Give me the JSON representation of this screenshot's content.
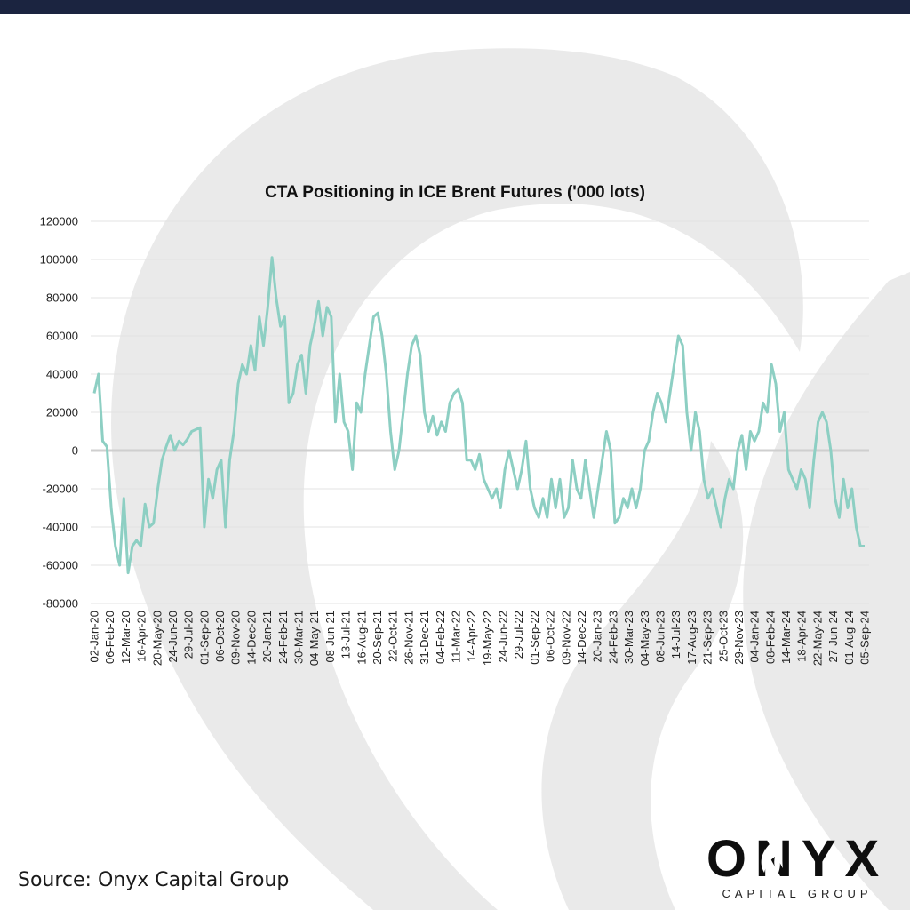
{
  "source": "Source: Onyx Capital Group",
  "brand": {
    "name": "ONYX",
    "sub": "CAPITAL GROUP"
  },
  "colors": {
    "series": "#8dcfc3",
    "zero_line": "#cfcfcf",
    "grid": "#e3e3e3",
    "top_bar": "#1b2440",
    "watermark": "#e2e2e2"
  },
  "chart_data": {
    "type": "line",
    "title": "CTA Positioning in ICE Brent Futures ('000 lots)",
    "xlabel": "",
    "ylabel": "",
    "ylim": [
      -80000,
      120000
    ],
    "yticks": [
      120000,
      100000,
      80000,
      60000,
      40000,
      20000,
      0,
      -20000,
      -40000,
      -60000,
      -80000
    ],
    "ytick_labels": [
      "120000",
      "100000",
      "80000",
      "60000",
      "40000",
      "20000",
      "0",
      "-20000",
      "-40000",
      "-60000",
      "-80000"
    ],
    "x_tick_labels": [
      "02-Jan-20",
      "06-Feb-20",
      "12-Mar-20",
      "16-Apr-20",
      "20-May-20",
      "24-Jun-20",
      "29-Jul-20",
      "01-Sep-20",
      "06-Oct-20",
      "09-Nov-20",
      "14-Dec-20",
      "20-Jan-21",
      "24-Feb-21",
      "30-Mar-21",
      "04-May-21",
      "08-Jun-21",
      "13-Jul-21",
      "16-Aug-21",
      "20-Sep-21",
      "22-Oct-21",
      "26-Nov-21",
      "31-Dec-21",
      "04-Feb-22",
      "11-Mar-22",
      "14-Apr-22",
      "19-May-22",
      "24-Jun-22",
      "29-Jul-22",
      "01-Sep-22",
      "06-Oct-22",
      "09-Nov-22",
      "14-Dec-22",
      "20-Jan-23",
      "24-Feb-23",
      "30-Mar-23",
      "04-May-23",
      "08-Jun-23",
      "14-Jul-23",
      "17-Aug-23",
      "21-Sep-23",
      "25-Oct-23",
      "29-Nov-23",
      "04-Jan-24",
      "08-Feb-24",
      "14-Mar-24",
      "18-Apr-24",
      "22-May-24",
      "27-Jun-24",
      "01-Aug-24",
      "05-Sep-24"
    ],
    "grid": true,
    "legend": "none",
    "series": [
      {
        "values": [
          30000,
          40000,
          5000,
          2000,
          -30000,
          -50000,
          -60000,
          -25000,
          -64000,
          -50000,
          -47000,
          -50000,
          -28000,
          -40000,
          -38000,
          -20000,
          -5000,
          2000,
          8000,
          0,
          5000,
          3000,
          6000,
          10000,
          11000,
          12000,
          -40000,
          -15000,
          -25000,
          -10000,
          -5000,
          -40000,
          -5000,
          10000,
          35000,
          45000,
          40000,
          55000,
          42000,
          70000,
          55000,
          75000,
          101000,
          80000,
          65000,
          70000,
          25000,
          30000,
          45000,
          50000,
          30000,
          55000,
          65000,
          78000,
          60000,
          75000,
          70000,
          15000,
          40000,
          15000,
          10000,
          -10000,
          25000,
          20000,
          40000,
          55000,
          70000,
          72000,
          60000,
          40000,
          10000,
          -10000,
          0,
          20000,
          40000,
          55000,
          60000,
          50000,
          20000,
          10000,
          18000,
          8000,
          15000,
          10000,
          25000,
          30000,
          32000,
          25000,
          -5000,
          -5000,
          -10000,
          -2000,
          -15000,
          -20000,
          -25000,
          -20000,
          -30000,
          -10000,
          0,
          -10000,
          -20000,
          -10000,
          5000,
          -20000,
          -30000,
          -35000,
          -25000,
          -35000,
          -15000,
          -30000,
          -15000,
          -35000,
          -30000,
          -5000,
          -20000,
          -25000,
          -5000,
          -20000,
          -35000,
          -20000,
          -5000,
          10000,
          0,
          -38000,
          -35000,
          -25000,
          -30000,
          -20000,
          -30000,
          -20000,
          0,
          5000,
          20000,
          30000,
          25000,
          15000,
          30000,
          45000,
          60000,
          55000,
          20000,
          0,
          20000,
          10000,
          -15000,
          -25000,
          -20000,
          -30000,
          -40000,
          -25000,
          -15000,
          -20000,
          0,
          8000,
          -10000,
          10000,
          5000,
          10000,
          25000,
          20000,
          45000,
          35000,
          10000,
          20000,
          -10000,
          -15000,
          -20000,
          -10000,
          -15000,
          -30000,
          -5000,
          15000,
          20000,
          15000,
          0,
          -25000,
          -35000,
          -15000,
          -30000,
          -20000,
          -40000,
          -50000,
          -50000
        ]
      }
    ]
  }
}
